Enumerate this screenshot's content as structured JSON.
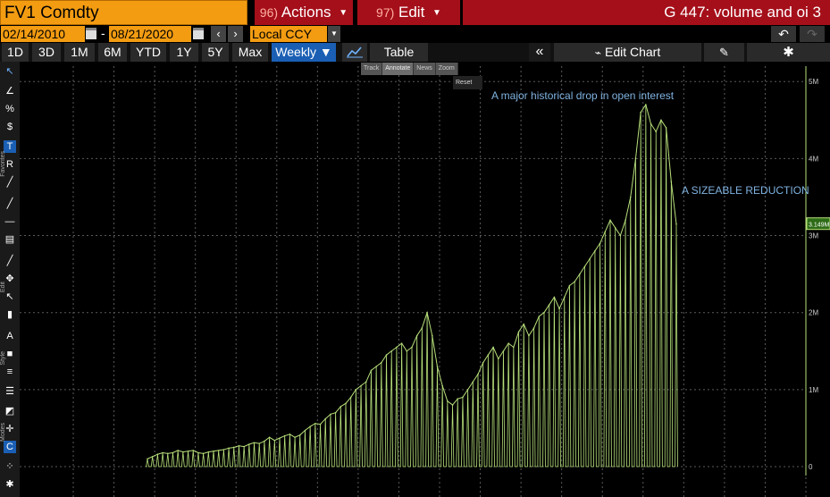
{
  "topbar": {
    "ticker": "FV1 Comdty",
    "actions_num": "96)",
    "actions_label": "Actions",
    "edit_num": "97)",
    "edit_label": "Edit",
    "title": "G 447: volume and oi 3"
  },
  "daterow": {
    "start_date": "02/14/2010",
    "separator": "-",
    "end_date": "08/21/2020",
    "currency": "Local CCY"
  },
  "toolbar": {
    "periods": [
      "1D",
      "3D",
      "1M",
      "6M",
      "YTD",
      "1Y",
      "5Y",
      "Max"
    ],
    "frequency": "Weekly ▼",
    "table_label": "Table",
    "edit_chart_label": "Edit Chart"
  },
  "mini_toolbar": {
    "items": [
      "Track",
      "Annotate",
      "News",
      "Zoom"
    ],
    "reset": "Reset"
  },
  "sidebar": {
    "favorites_label": "Favorites",
    "edit_label": "Edit",
    "style_label": "Style",
    "modes_label": "Modes"
  },
  "annotations": {
    "drop": "A major historical drop in open interest",
    "reduction": "A SIZEABLE REDUCTION"
  },
  "chart_data": {
    "type": "line",
    "title": "",
    "xlabel": "",
    "ylabel": "",
    "ylim": [
      0,
      5200000
    ],
    "yticks": [
      0,
      1000000,
      2000000,
      3000000,
      4000000,
      5000000
    ],
    "ytick_labels": [
      "0",
      "1M",
      "2M",
      "3M",
      "4M",
      "5M"
    ],
    "last_value_label": "3.149M",
    "last_value": 3149000,
    "grid": true,
    "line_color": "#b7e07a",
    "series": [
      {
        "values": [
          100000,
          130000,
          160000,
          180000,
          170000,
          180000,
          210000,
          190000,
          200000,
          210000,
          180000,
          170000,
          190000,
          200000,
          210000,
          220000,
          240000,
          250000,
          270000,
          260000,
          290000,
          310000,
          300000,
          330000,
          380000,
          340000,
          370000,
          400000,
          420000,
          380000,
          410000,
          470000,
          520000,
          560000,
          550000,
          620000,
          680000,
          700000,
          780000,
          820000,
          900000,
          1000000,
          1050000,
          1100000,
          1250000,
          1300000,
          1350000,
          1450000,
          1500000,
          1550000,
          1600000,
          1500000,
          1550000,
          1700000,
          1800000,
          2000000,
          1700000,
          1300000,
          1050000,
          850000,
          800000,
          880000,
          900000,
          1000000,
          1100000,
          1200000,
          1350000,
          1450000,
          1550000,
          1400000,
          1500000,
          1600000,
          1550000,
          1750000,
          1850000,
          1700000,
          1800000,
          1950000,
          2000000,
          2100000,
          2200000,
          2050000,
          2200000,
          2350000,
          2400000,
          2500000,
          2600000,
          2700000,
          2800000,
          2900000,
          3050000,
          3200000,
          3100000,
          3000000,
          3200000,
          3500000,
          4000000,
          4600000,
          4700000,
          4450000,
          4350000,
          4500000,
          4400000,
          3700000,
          3149000
        ]
      }
    ]
  }
}
